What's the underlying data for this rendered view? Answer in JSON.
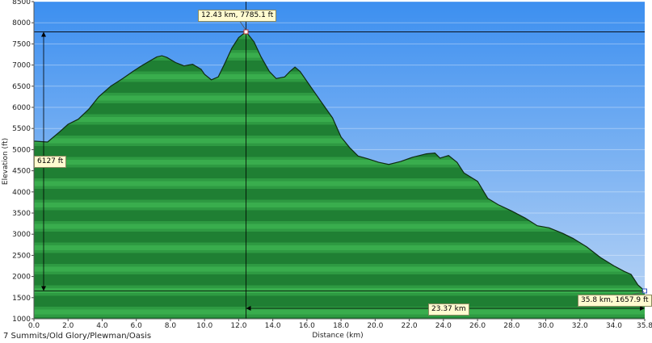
{
  "chart_data": {
    "type": "area",
    "title": "7 Summits/Old Glory/Plewman/Oasis",
    "xlabel": "Distance (km)",
    "ylabel": "Elevation (ft)",
    "xlim": [
      0,
      35.8
    ],
    "ylim": [
      1000,
      8500
    ],
    "x_ticks": [
      "0.0",
      "2.0",
      "4.0",
      "6.0",
      "8.0",
      "10.0",
      "12.0",
      "14.0",
      "16.0",
      "18.0",
      "20.0",
      "22.0",
      "24.0",
      "26.0",
      "28.0",
      "30.0",
      "32.0",
      "34.0",
      "35.8"
    ],
    "y_ticks": [
      "1000",
      "1500",
      "2000",
      "2500",
      "3000",
      "3500",
      "4000",
      "4500",
      "5000",
      "5500",
      "6000",
      "6500",
      "7000",
      "7500",
      "8000",
      "8500"
    ],
    "series": [
      {
        "x": [
          0,
          0.8,
          1.5,
          2.0,
          2.6,
          3.2,
          3.8,
          4.5,
          5.2,
          5.8,
          6.3,
          6.8,
          7.2,
          7.5,
          7.8,
          8.3,
          8.8,
          9.3,
          9.8,
          10.0,
          10.4,
          10.8,
          11.2,
          11.6,
          12.0,
          12.43,
          12.9,
          13.3,
          13.8,
          14.2,
          14.7,
          15.0,
          15.3,
          15.6,
          16.2,
          16.8,
          17.5,
          18.0,
          18.5,
          19.0,
          19.6,
          20.2,
          20.8,
          21.5,
          22.2,
          23.0,
          23.5,
          23.8,
          24.3,
          24.8,
          25.2,
          26.0,
          26.6,
          27.2,
          28.0,
          28.8,
          29.5,
          30.2,
          31.0,
          31.6,
          32.4,
          33.2,
          34.0,
          34.6,
          35.0,
          35.4,
          35.8
        ],
        "y": [
          5200,
          5180,
          5420,
          5600,
          5720,
          5950,
          6250,
          6500,
          6680,
          6850,
          6980,
          7100,
          7190,
          7220,
          7180,
          7060,
          6980,
          7020,
          6900,
          6780,
          6650,
          6720,
          7050,
          7400,
          7650,
          7785,
          7550,
          7200,
          6850,
          6680,
          6720,
          6850,
          6950,
          6850,
          6500,
          6150,
          5750,
          5300,
          5050,
          4850,
          4780,
          4700,
          4650,
          4720,
          4820,
          4900,
          4920,
          4800,
          4860,
          4700,
          4450,
          4250,
          3850,
          3700,
          3550,
          3380,
          3200,
          3150,
          3020,
          2900,
          2700,
          2450,
          2250,
          2120,
          2050,
          1800,
          1657.9
        ]
      }
    ],
    "annotations": {
      "peak_label": "12.43 km, 7785.1 ft",
      "end_label": "35.8 km, 1657.9 ft",
      "gain_label": "6127 ft",
      "span_label": "23.37 km"
    },
    "markers": {
      "peak": {
        "x": 12.43,
        "y": 7785.1
      },
      "end": {
        "x": 35.8,
        "y": 1657.9
      }
    },
    "grid": true
  },
  "colors": {
    "sky_top": "#3c8ff0",
    "sky_bottom": "#bcd6f5",
    "fill_dark": "#1c7a30",
    "fill_light": "#3cb04e",
    "outline": "#0f2a12"
  }
}
